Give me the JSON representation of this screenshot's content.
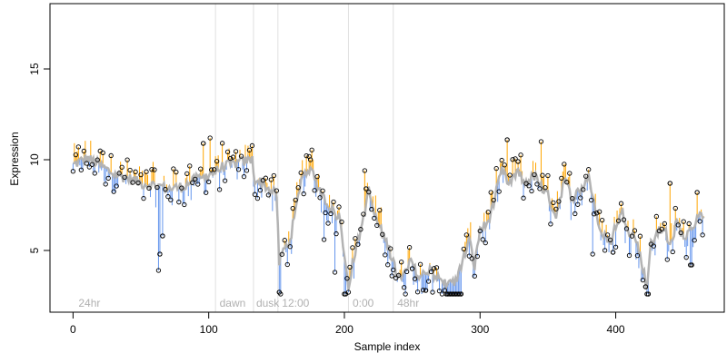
{
  "chart_data": {
    "type": "scatter",
    "xlabel": "Sample index",
    "ylabel": "Expression",
    "xlim": [
      -17,
      480
    ],
    "ylim": [
      1.6,
      18.6
    ],
    "x_ticks": [
      0,
      100,
      200,
      300,
      400
    ],
    "y_ticks": [
      5,
      10,
      15
    ],
    "colors": {
      "above_fit": "#FFA500",
      "below_fit": "#6495ED",
      "fit_line": "#b3b3b3",
      "points": "#000000",
      "separators": "#e0e0e0"
    },
    "annotations": [
      {
        "x": 2,
        "label": "24hr"
      },
      {
        "x": 106,
        "label": "dawn"
      },
      {
        "x": 133,
        "label": "dusk"
      },
      {
        "x": 152,
        "label": "12:00"
      },
      {
        "x": 204,
        "label": "0:00"
      },
      {
        "x": 237,
        "label": "48hr"
      }
    ],
    "separators_x": [
      105,
      133,
      151,
      203,
      236
    ],
    "anchors": [
      [
        0,
        9.7
      ],
      [
        10,
        10.1
      ],
      [
        20,
        9.7
      ],
      [
        30,
        9.2
      ],
      [
        40,
        9.0
      ],
      [
        50,
        8.7
      ],
      [
        60,
        8.6
      ],
      [
        70,
        8.4
      ],
      [
        80,
        8.5
      ],
      [
        90,
        8.9
      ],
      [
        100,
        9.1
      ],
      [
        106,
        9.4
      ],
      [
        110,
        9.6
      ],
      [
        120,
        9.8
      ],
      [
        132,
        10.0
      ],
      [
        134,
        8.9
      ],
      [
        140,
        8.7
      ],
      [
        145,
        8.3
      ],
      [
        150,
        8.1
      ],
      [
        152,
        4.2
      ],
      [
        155,
        5.0
      ],
      [
        160,
        5.6
      ],
      [
        165,
        7.5
      ],
      [
        168,
        9.0
      ],
      [
        175,
        9.6
      ],
      [
        180,
        8.6
      ],
      [
        190,
        7.3
      ],
      [
        197,
        6.8
      ],
      [
        200,
        4.8
      ],
      [
        203,
        3.1
      ],
      [
        207,
        4.6
      ],
      [
        212,
        6.1
      ],
      [
        218,
        8.3
      ],
      [
        222,
        7.0
      ],
      [
        228,
        5.9
      ],
      [
        233,
        5.1
      ],
      [
        238,
        3.8
      ],
      [
        242,
        3.3
      ],
      [
        248,
        4.5
      ],
      [
        255,
        3.5
      ],
      [
        262,
        3.9
      ],
      [
        270,
        3.4
      ],
      [
        276,
        3.1
      ],
      [
        282,
        3.3
      ],
      [
        288,
        4.6
      ],
      [
        292,
        5.6
      ],
      [
        296,
        4.1
      ],
      [
        300,
        6.2
      ],
      [
        305,
        6.4
      ],
      [
        310,
        7.6
      ],
      [
        316,
        9.4
      ],
      [
        322,
        8.6
      ],
      [
        328,
        9.5
      ],
      [
        332,
        8.7
      ],
      [
        340,
        9.1
      ],
      [
        350,
        8.0
      ],
      [
        356,
        6.9
      ],
      [
        362,
        8.9
      ],
      [
        368,
        7.9
      ],
      [
        375,
        8.4
      ],
      [
        380,
        9.2
      ],
      [
        385,
        7.1
      ],
      [
        390,
        6.1
      ],
      [
        396,
        5.4
      ],
      [
        400,
        6.4
      ],
      [
        405,
        7.1
      ],
      [
        410,
        6.1
      ],
      [
        415,
        5.6
      ],
      [
        420,
        4.1
      ],
      [
        423,
        2.9
      ],
      [
        426,
        5.3
      ],
      [
        430,
        5.9
      ],
      [
        436,
        6.3
      ],
      [
        440,
        5.1
      ],
      [
        445,
        6.6
      ],
      [
        450,
        5.7
      ],
      [
        456,
        6.1
      ],
      [
        460,
        6.9
      ],
      [
        465,
        7.0
      ]
    ],
    "outliers": [
      [
        63,
        3.9
      ],
      [
        64,
        4.8
      ],
      [
        66,
        5.8
      ],
      [
        96,
        10.9
      ],
      [
        101,
        11.2
      ],
      [
        152,
        2.7
      ],
      [
        153,
        2.6
      ],
      [
        175,
        10.0
      ],
      [
        185,
        5.6
      ],
      [
        193,
        3.8
      ],
      [
        200,
        2.6
      ],
      [
        201,
        2.6
      ],
      [
        203,
        2.7
      ],
      [
        215,
        9.4
      ],
      [
        216,
        8.4
      ],
      [
        235,
        3.6
      ],
      [
        245,
        2.6
      ],
      [
        250,
        4.0
      ],
      [
        260,
        2.8
      ],
      [
        265,
        2.7
      ],
      [
        275,
        2.6
      ],
      [
        276,
        2.6
      ],
      [
        277,
        2.6
      ],
      [
        278,
        2.6
      ],
      [
        279,
        2.6
      ],
      [
        280,
        2.6
      ],
      [
        281,
        2.6
      ],
      [
        282,
        2.6
      ],
      [
        283,
        2.6
      ],
      [
        284,
        2.6
      ],
      [
        285,
        2.6
      ],
      [
        286,
        2.6
      ],
      [
        320,
        11.1
      ],
      [
        328,
        9.9
      ],
      [
        345,
        11.0
      ],
      [
        383,
        4.8
      ],
      [
        398,
        4.9
      ],
      [
        422,
        3.0
      ],
      [
        423,
        2.6
      ],
      [
        424,
        2.5
      ],
      [
        440,
        8.7
      ],
      [
        455,
        4.2
      ],
      [
        456,
        4.2
      ],
      [
        460,
        8.2
      ]
    ]
  }
}
